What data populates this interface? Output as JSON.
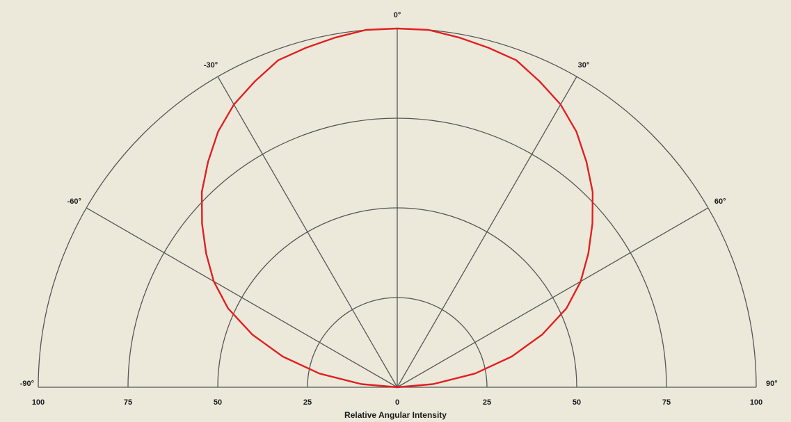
{
  "chart_data": {
    "type": "polar-line",
    "title": "",
    "xlabel": "Relative Angular Intensity",
    "radial_range": [
      0,
      100
    ],
    "radial_ticks": [
      25,
      50,
      75,
      100
    ],
    "radial_tick_labels": [
      "100",
      "75",
      "50",
      "25",
      "0",
      "25",
      "50",
      "75",
      "100"
    ],
    "angle_range_deg": [
      -90,
      90
    ],
    "angle_ticks_deg": [
      -90,
      -60,
      -30,
      0,
      30,
      60,
      90
    ],
    "angle_tick_labels": [
      "-90°",
      "-60°",
      "-30°",
      "0°",
      "30°",
      "60°",
      "90°"
    ],
    "grid": true,
    "colors": {
      "background": "#ece9db",
      "grid": "#555555",
      "series": "#e02020"
    },
    "series": [
      {
        "angles_deg": [
          -90,
          -85,
          -80,
          -75,
          -70,
          -65,
          -60,
          -55,
          -50,
          -45,
          -40,
          -35,
          -30,
          -25,
          -20,
          -15,
          -10,
          -5,
          0,
          5,
          10,
          15,
          20,
          25,
          30,
          35,
          40,
          45,
          50,
          55,
          60,
          65,
          70,
          75,
          80,
          85,
          90
        ],
        "values": [
          0,
          10,
          22,
          33,
          43,
          52,
          59,
          65,
          71,
          77,
          82,
          87,
          91,
          94,
          97,
          98,
          99,
          100,
          100,
          100,
          99,
          98,
          97,
          94,
          91,
          87,
          82,
          77,
          71,
          65,
          59,
          52,
          43,
          33,
          22,
          10,
          0
        ]
      }
    ]
  }
}
